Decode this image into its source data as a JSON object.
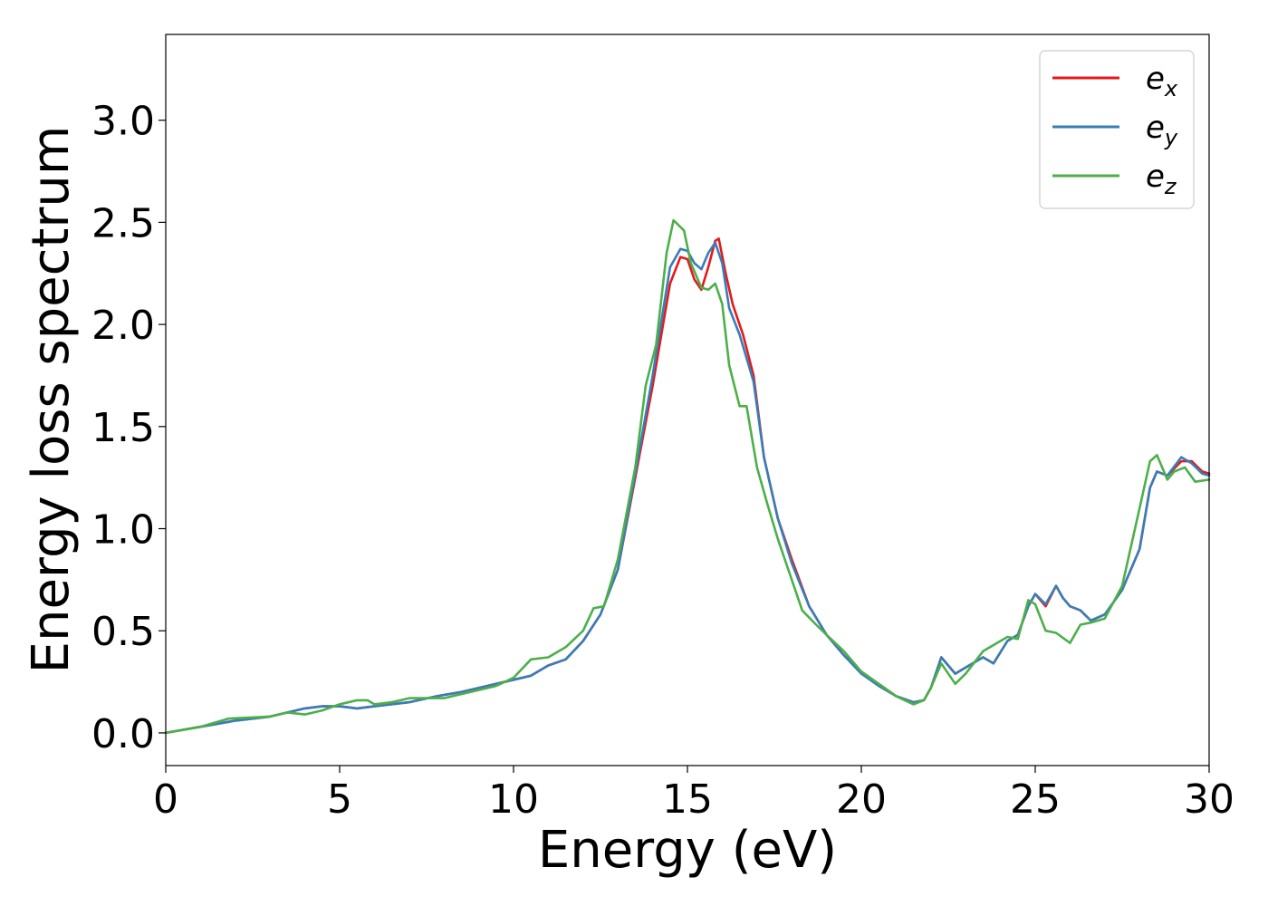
{
  "chart_data": {
    "type": "line",
    "title": "",
    "xlabel": "Energy (eV)",
    "ylabel": "Energy loss spectrum",
    "xlim": [
      0,
      30
    ],
    "ylim": [
      -0.16,
      3.42
    ],
    "xticks": [
      0,
      5,
      10,
      15,
      20,
      25,
      30
    ],
    "xtick_labels": [
      "0",
      "5",
      "10",
      "15",
      "20",
      "25",
      "30"
    ],
    "yticks": [
      0.0,
      0.5,
      1.0,
      1.5,
      2.0,
      2.5,
      3.0
    ],
    "ytick_labels": [
      "0.0",
      "0.5",
      "1.0",
      "1.5",
      "2.0",
      "2.5",
      "3.0"
    ],
    "grid": false,
    "legend_position": "top-right",
    "series": [
      {
        "name": "e_x",
        "legend_base": "e",
        "legend_sub": "x",
        "color": "#e41a1c",
        "points": [
          [
            0,
            0
          ],
          [
            1,
            0.03
          ],
          [
            2,
            0.06
          ],
          [
            3,
            0.08
          ],
          [
            4,
            0.12
          ],
          [
            4.5,
            0.13
          ],
          [
            5,
            0.13
          ],
          [
            5.5,
            0.12
          ],
          [
            6,
            0.13
          ],
          [
            7,
            0.15
          ],
          [
            7.8,
            0.18
          ],
          [
            8.5,
            0.2
          ],
          [
            9,
            0.22
          ],
          [
            10,
            0.26
          ],
          [
            10.5,
            0.28
          ],
          [
            11,
            0.33
          ],
          [
            11.5,
            0.36
          ],
          [
            12,
            0.45
          ],
          [
            12.5,
            0.58
          ],
          [
            13,
            0.8
          ],
          [
            13.5,
            1.25
          ],
          [
            14,
            1.7
          ],
          [
            14.5,
            2.2
          ],
          [
            14.8,
            2.33
          ],
          [
            15,
            2.32
          ],
          [
            15.2,
            2.22
          ],
          [
            15.4,
            2.17
          ],
          [
            15.6,
            2.28
          ],
          [
            15.8,
            2.41
          ],
          [
            15.9,
            2.42
          ],
          [
            16.1,
            2.25
          ],
          [
            16.3,
            2.1
          ],
          [
            16.6,
            1.95
          ],
          [
            16.9,
            1.75
          ],
          [
            17.2,
            1.35
          ],
          [
            17.6,
            1.05
          ],
          [
            18,
            0.85
          ],
          [
            18.5,
            0.62
          ],
          [
            19,
            0.48
          ],
          [
            19.5,
            0.38
          ],
          [
            20,
            0.3
          ],
          [
            20.5,
            0.24
          ],
          [
            21,
            0.18
          ],
          [
            21.5,
            0.15
          ],
          [
            21.8,
            0.16
          ],
          [
            22,
            0.22
          ],
          [
            22.3,
            0.37
          ],
          [
            22.7,
            0.29
          ],
          [
            23,
            0.32
          ],
          [
            23.5,
            0.37
          ],
          [
            23.8,
            0.34
          ],
          [
            24.2,
            0.45
          ],
          [
            24.5,
            0.48
          ],
          [
            24.8,
            0.62
          ],
          [
            25,
            0.68
          ],
          [
            25.3,
            0.62
          ],
          [
            25.6,
            0.72
          ],
          [
            25.8,
            0.66
          ],
          [
            26,
            0.62
          ],
          [
            26.3,
            0.6
          ],
          [
            26.6,
            0.55
          ],
          [
            27,
            0.58
          ],
          [
            27.5,
            0.7
          ],
          [
            28,
            0.9
          ],
          [
            28.3,
            1.2
          ],
          [
            28.5,
            1.28
          ],
          [
            28.8,
            1.26
          ],
          [
            29.2,
            1.33
          ],
          [
            29.5,
            1.33
          ],
          [
            29.8,
            1.28
          ],
          [
            30,
            1.27
          ]
        ]
      },
      {
        "name": "e_y",
        "legend_base": "e",
        "legend_sub": "y",
        "color": "#377eb8",
        "points": [
          [
            0,
            0
          ],
          [
            1,
            0.03
          ],
          [
            2,
            0.06
          ],
          [
            3,
            0.08
          ],
          [
            4,
            0.12
          ],
          [
            4.5,
            0.13
          ],
          [
            5,
            0.13
          ],
          [
            5.5,
            0.12
          ],
          [
            6,
            0.13
          ],
          [
            7,
            0.15
          ],
          [
            7.8,
            0.18
          ],
          [
            8.5,
            0.2
          ],
          [
            9,
            0.22
          ],
          [
            10,
            0.26
          ],
          [
            10.5,
            0.28
          ],
          [
            11,
            0.33
          ],
          [
            11.5,
            0.36
          ],
          [
            12,
            0.45
          ],
          [
            12.5,
            0.58
          ],
          [
            13,
            0.8
          ],
          [
            13.5,
            1.27
          ],
          [
            14,
            1.75
          ],
          [
            14.5,
            2.28
          ],
          [
            14.8,
            2.37
          ],
          [
            15,
            2.36
          ],
          [
            15.2,
            2.3
          ],
          [
            15.4,
            2.27
          ],
          [
            15.6,
            2.35
          ],
          [
            15.8,
            2.4
          ],
          [
            16,
            2.3
          ],
          [
            16.2,
            2.08
          ],
          [
            16.5,
            1.95
          ],
          [
            16.9,
            1.72
          ],
          [
            17.2,
            1.35
          ],
          [
            17.6,
            1.05
          ],
          [
            18,
            0.83
          ],
          [
            18.5,
            0.62
          ],
          [
            19,
            0.48
          ],
          [
            19.5,
            0.38
          ],
          [
            20,
            0.29
          ],
          [
            20.5,
            0.23
          ],
          [
            21,
            0.18
          ],
          [
            21.5,
            0.15
          ],
          [
            21.8,
            0.16
          ],
          [
            22,
            0.22
          ],
          [
            22.3,
            0.37
          ],
          [
            22.7,
            0.29
          ],
          [
            23,
            0.32
          ],
          [
            23.5,
            0.37
          ],
          [
            23.8,
            0.34
          ],
          [
            24.2,
            0.45
          ],
          [
            24.5,
            0.48
          ],
          [
            24.8,
            0.62
          ],
          [
            25,
            0.68
          ],
          [
            25.3,
            0.63
          ],
          [
            25.6,
            0.72
          ],
          [
            25.8,
            0.66
          ],
          [
            26,
            0.62
          ],
          [
            26.3,
            0.6
          ],
          [
            26.6,
            0.55
          ],
          [
            27,
            0.58
          ],
          [
            27.5,
            0.7
          ],
          [
            28,
            0.9
          ],
          [
            28.3,
            1.2
          ],
          [
            28.5,
            1.28
          ],
          [
            28.8,
            1.26
          ],
          [
            29.2,
            1.35
          ],
          [
            29.5,
            1.32
          ],
          [
            29.8,
            1.27
          ],
          [
            30,
            1.26
          ]
        ]
      },
      {
        "name": "e_z",
        "legend_base": "e",
        "legend_sub": "z",
        "color": "#4daf4a",
        "points": [
          [
            0,
            0
          ],
          [
            1,
            0.03
          ],
          [
            1.8,
            0.07
          ],
          [
            3,
            0.08
          ],
          [
            3.5,
            0.1
          ],
          [
            4,
            0.09
          ],
          [
            4.5,
            0.11
          ],
          [
            5,
            0.14
          ],
          [
            5.5,
            0.16
          ],
          [
            5.8,
            0.16
          ],
          [
            6,
            0.14
          ],
          [
            6.5,
            0.15
          ],
          [
            7,
            0.17
          ],
          [
            8,
            0.17
          ],
          [
            8.5,
            0.19
          ],
          [
            9,
            0.21
          ],
          [
            9.5,
            0.23
          ],
          [
            10,
            0.27
          ],
          [
            10.5,
            0.36
          ],
          [
            11,
            0.37
          ],
          [
            11.5,
            0.42
          ],
          [
            12,
            0.5
          ],
          [
            12.3,
            0.61
          ],
          [
            12.6,
            0.62
          ],
          [
            13,
            0.85
          ],
          [
            13.5,
            1.3
          ],
          [
            13.8,
            1.7
          ],
          [
            14.1,
            1.9
          ],
          [
            14.4,
            2.35
          ],
          [
            14.6,
            2.51
          ],
          [
            14.9,
            2.46
          ],
          [
            15.1,
            2.3
          ],
          [
            15.4,
            2.18
          ],
          [
            15.6,
            2.17
          ],
          [
            15.8,
            2.2
          ],
          [
            16,
            2.1
          ],
          [
            16.2,
            1.8
          ],
          [
            16.5,
            1.6
          ],
          [
            16.7,
            1.6
          ],
          [
            17,
            1.3
          ],
          [
            17.3,
            1.12
          ],
          [
            17.6,
            0.95
          ],
          [
            18,
            0.75
          ],
          [
            18.3,
            0.6
          ],
          [
            18.7,
            0.53
          ],
          [
            19,
            0.48
          ],
          [
            19.5,
            0.4
          ],
          [
            20,
            0.3
          ],
          [
            20.5,
            0.24
          ],
          [
            21,
            0.18
          ],
          [
            21.5,
            0.14
          ],
          [
            21.8,
            0.16
          ],
          [
            22,
            0.22
          ],
          [
            22.3,
            0.34
          ],
          [
            22.7,
            0.24
          ],
          [
            23,
            0.29
          ],
          [
            23.5,
            0.4
          ],
          [
            23.8,
            0.43
          ],
          [
            24.2,
            0.47
          ],
          [
            24.5,
            0.46
          ],
          [
            24.8,
            0.65
          ],
          [
            25,
            0.63
          ],
          [
            25.3,
            0.5
          ],
          [
            25.6,
            0.49
          ],
          [
            26,
            0.44
          ],
          [
            26.3,
            0.53
          ],
          [
            26.6,
            0.54
          ],
          [
            27,
            0.56
          ],
          [
            27.5,
            0.72
          ],
          [
            28,
            1.1
          ],
          [
            28.3,
            1.33
          ],
          [
            28.5,
            1.36
          ],
          [
            28.8,
            1.24
          ],
          [
            29,
            1.28
          ],
          [
            29.3,
            1.3
          ],
          [
            29.6,
            1.23
          ],
          [
            30,
            1.24
          ]
        ]
      }
    ]
  }
}
